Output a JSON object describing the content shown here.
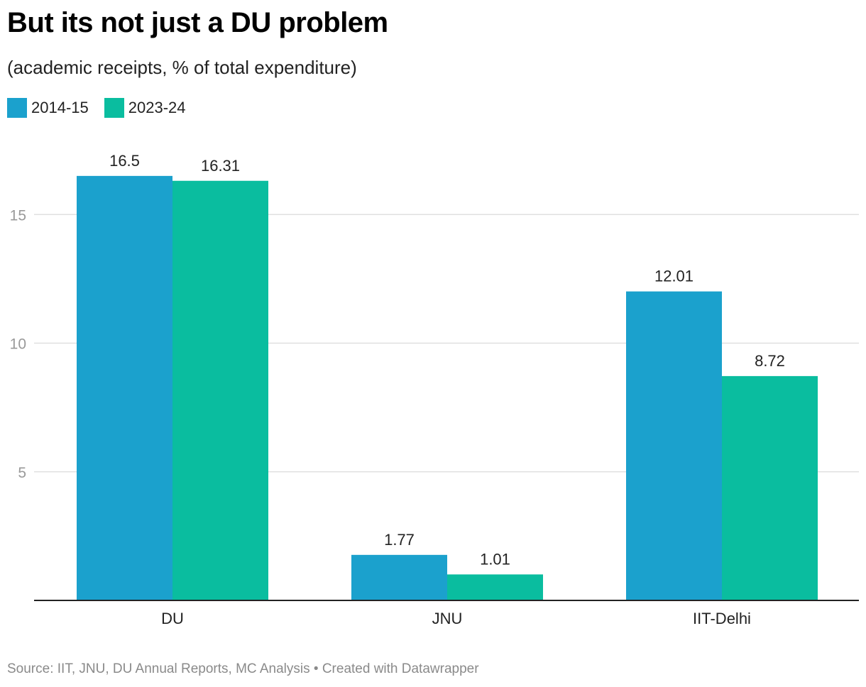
{
  "title": "But its not just a DU problem",
  "subtitle": "(academic receipts, % of total expenditure)",
  "footer": {
    "source": "Source: IIT, JNU, DU Annual Reports, MC Analysis",
    "separator": " • ",
    "credit": "Created with Datawrapper"
  },
  "colors": {
    "series_2014_15": "#1ba1cd",
    "series_2023_24": "#0abd9f",
    "grid": "#e0e0e0",
    "axis": "#222222",
    "tick_label": "#999999"
  },
  "chart_data": {
    "type": "bar",
    "title": "But its not just a DU problem",
    "subtitle": "(academic receipts, % of total expenditure)",
    "categories": [
      "DU",
      "JNU",
      "IIT-Delhi"
    ],
    "series": [
      {
        "name": "2014-15",
        "values": [
          16.5,
          1.77,
          12.01
        ]
      },
      {
        "name": "2023-24",
        "values": [
          16.31,
          1.01,
          8.72
        ]
      }
    ],
    "value_labels": [
      [
        "16.5",
        "1.77",
        "12.01"
      ],
      [
        "16.31",
        "1.01",
        "8.72"
      ]
    ],
    "ylim": [
      0,
      18
    ],
    "yticks": [
      5,
      10,
      15
    ],
    "ytick_labels": [
      "5",
      "10",
      "15"
    ],
    "grid": true,
    "legend": "top-left",
    "xlabel": "",
    "ylabel": ""
  }
}
